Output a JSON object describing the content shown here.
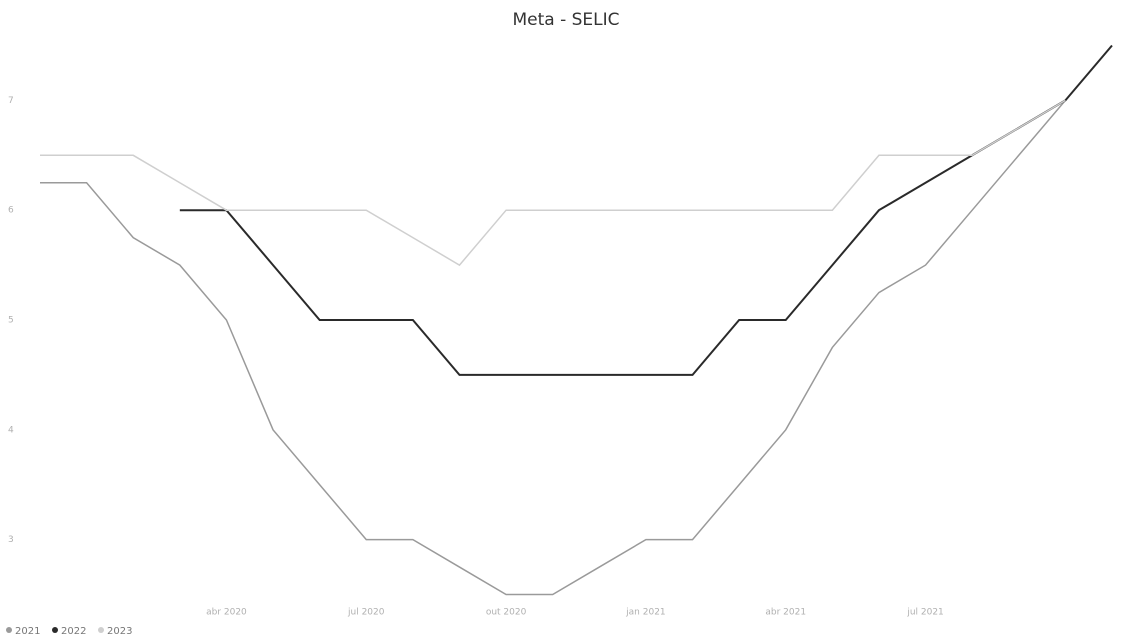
{
  "chart_data": {
    "type": "line",
    "title": "Meta - SELIC",
    "x": [
      "2019-12",
      "2020-01",
      "2020-02",
      "2020-03",
      "2020-04",
      "2020-05",
      "2020-06",
      "2020-07",
      "2020-08",
      "2020-09",
      "2020-10",
      "2020-11",
      "2020-12",
      "2021-01",
      "2021-02",
      "2021-03",
      "2021-04",
      "2021-05",
      "2021-06",
      "2021-07",
      "2021-08",
      "2021-09",
      "2021-10",
      "2021-11"
    ],
    "xlim": [
      "2019-12",
      "2021-11"
    ],
    "xticks": [
      {
        "value": "2020-04",
        "label": "abr 2020"
      },
      {
        "value": "2020-07",
        "label": "jul 2020"
      },
      {
        "value": "2020-10",
        "label": "out 2020"
      },
      {
        "value": "2021-01",
        "label": "jan 2021"
      },
      {
        "value": "2021-04",
        "label": "abr 2021"
      },
      {
        "value": "2021-07",
        "label": "jul 2021"
      }
    ],
    "ylim": [
      2.45,
      7.55
    ],
    "yticks": [
      3,
      4,
      5,
      6,
      7
    ],
    "grid": false,
    "legend": "bottom-left",
    "series": [
      {
        "name": "2021",
        "color": "#9a9a9a",
        "values": [
          6.25,
          6.25,
          5.75,
          5.5,
          5.0,
          4.0,
          3.5,
          3.0,
          3.0,
          2.75,
          2.5,
          2.5,
          2.75,
          3.0,
          3.0,
          3.5,
          4.0,
          4.75,
          5.25,
          5.5,
          6.0,
          6.5,
          7.0,
          null
        ]
      },
      {
        "name": "2022",
        "color": "#2a2a2a",
        "values": [
          null,
          null,
          null,
          6.0,
          6.0,
          5.5,
          5.0,
          5.0,
          5.0,
          4.5,
          4.5,
          4.5,
          4.5,
          4.5,
          4.5,
          5.0,
          5.0,
          5.5,
          6.0,
          6.25,
          6.5,
          6.75,
          7.0,
          7.5
        ]
      },
      {
        "name": "2023",
        "color": "#cfcfcf",
        "values": [
          6.5,
          6.5,
          6.5,
          6.25,
          6.0,
          6.0,
          6.0,
          6.0,
          5.75,
          5.5,
          6.0,
          6.0,
          6.0,
          6.0,
          6.0,
          6.0,
          6.0,
          6.0,
          6.5,
          6.5,
          6.5,
          6.75,
          7.0,
          null
        ]
      }
    ]
  }
}
